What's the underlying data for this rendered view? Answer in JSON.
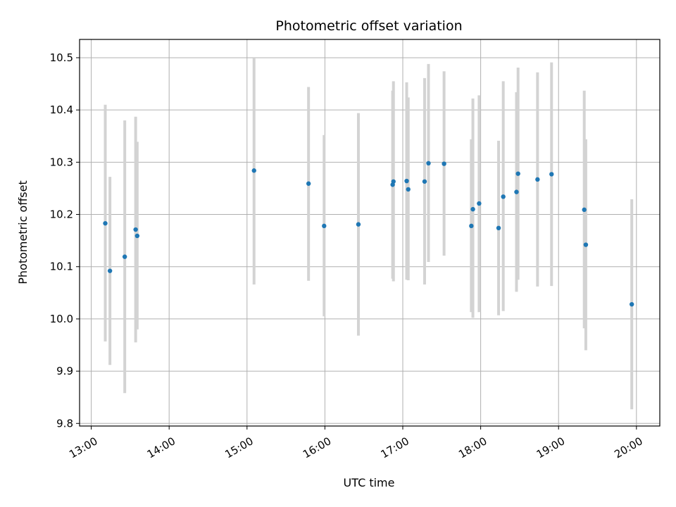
{
  "chart_data": {
    "type": "scatter",
    "title": "Photometric offset variation",
    "xlabel": "UTC time",
    "ylabel": "Photometric offset",
    "xlim": [
      12.85,
      20.3
    ],
    "ylim": [
      9.795,
      10.535
    ],
    "xticks": [
      {
        "value": 13,
        "label": "13:00"
      },
      {
        "value": 14,
        "label": "14:00"
      },
      {
        "value": 15,
        "label": "15:00"
      },
      {
        "value": 16,
        "label": "16:00"
      },
      {
        "value": 17,
        "label": "17:00"
      },
      {
        "value": 18,
        "label": "18:00"
      },
      {
        "value": 19,
        "label": "19:00"
      },
      {
        "value": 20,
        "label": "20:00"
      }
    ],
    "yticks": [
      {
        "value": 9.8,
        "label": "9.8"
      },
      {
        "value": 9.9,
        "label": "9.9"
      },
      {
        "value": 10.0,
        "label": "10.0"
      },
      {
        "value": 10.1,
        "label": "10.1"
      },
      {
        "value": 10.2,
        "label": "10.2"
      },
      {
        "value": 10.3,
        "label": "10.3"
      },
      {
        "value": 10.4,
        "label": "10.4"
      },
      {
        "value": 10.5,
        "label": "10.5"
      }
    ],
    "grid": true,
    "point_color": "#1f77b4",
    "errorbar_color": "#d3d3d3",
    "series": [
      {
        "name": "offset",
        "points": [
          {
            "x": 13.18,
            "y": 10.183,
            "ylow": 9.957,
            "yhigh": 10.41
          },
          {
            "x": 13.24,
            "y": 10.092,
            "ylow": 9.912,
            "yhigh": 10.272
          },
          {
            "x": 13.43,
            "y": 10.119,
            "ylow": 9.858,
            "yhigh": 10.38
          },
          {
            "x": 13.57,
            "y": 10.171,
            "ylow": 9.955,
            "yhigh": 10.387
          },
          {
            "x": 13.59,
            "y": 10.159,
            "ylow": 9.98,
            "yhigh": 10.339
          },
          {
            "x": 15.09,
            "y": 10.284,
            "ylow": 10.066,
            "yhigh": 10.5
          },
          {
            "x": 15.79,
            "y": 10.259,
            "ylow": 10.073,
            "yhigh": 10.444
          },
          {
            "x": 15.99,
            "y": 10.178,
            "ylow": 10.005,
            "yhigh": 10.352
          },
          {
            "x": 16.43,
            "y": 10.181,
            "ylow": 9.968,
            "yhigh": 10.394
          },
          {
            "x": 16.87,
            "y": 10.257,
            "ylow": 10.077,
            "yhigh": 10.437
          },
          {
            "x": 16.88,
            "y": 10.263,
            "ylow": 10.072,
            "yhigh": 10.455
          },
          {
            "x": 17.05,
            "y": 10.264,
            "ylow": 10.075,
            "yhigh": 10.453
          },
          {
            "x": 17.07,
            "y": 10.248,
            "ylow": 10.074,
            "yhigh": 10.424
          },
          {
            "x": 17.28,
            "y": 10.263,
            "ylow": 10.066,
            "yhigh": 10.461
          },
          {
            "x": 17.33,
            "y": 10.298,
            "ylow": 10.109,
            "yhigh": 10.488
          },
          {
            "x": 17.53,
            "y": 10.297,
            "ylow": 10.121,
            "yhigh": 10.474
          },
          {
            "x": 17.88,
            "y": 10.178,
            "ylow": 10.013,
            "yhigh": 10.344
          },
          {
            "x": 17.9,
            "y": 10.21,
            "ylow": 10.002,
            "yhigh": 10.422
          },
          {
            "x": 17.98,
            "y": 10.221,
            "ylow": 10.013,
            "yhigh": 10.428
          },
          {
            "x": 18.23,
            "y": 10.174,
            "ylow": 10.007,
            "yhigh": 10.341
          },
          {
            "x": 18.29,
            "y": 10.234,
            "ylow": 10.015,
            "yhigh": 10.455
          },
          {
            "x": 18.46,
            "y": 10.243,
            "ylow": 10.052,
            "yhigh": 10.434
          },
          {
            "x": 18.48,
            "y": 10.278,
            "ylow": 10.075,
            "yhigh": 10.481
          },
          {
            "x": 18.73,
            "y": 10.267,
            "ylow": 10.062,
            "yhigh": 10.472
          },
          {
            "x": 18.91,
            "y": 10.277,
            "ylow": 10.063,
            "yhigh": 10.491
          },
          {
            "x": 19.33,
            "y": 10.209,
            "ylow": 9.982,
            "yhigh": 10.437
          },
          {
            "x": 19.35,
            "y": 10.142,
            "ylow": 9.94,
            "yhigh": 10.344
          },
          {
            "x": 19.94,
            "y": 10.028,
            "ylow": 9.827,
            "yhigh": 10.229
          }
        ]
      }
    ]
  }
}
